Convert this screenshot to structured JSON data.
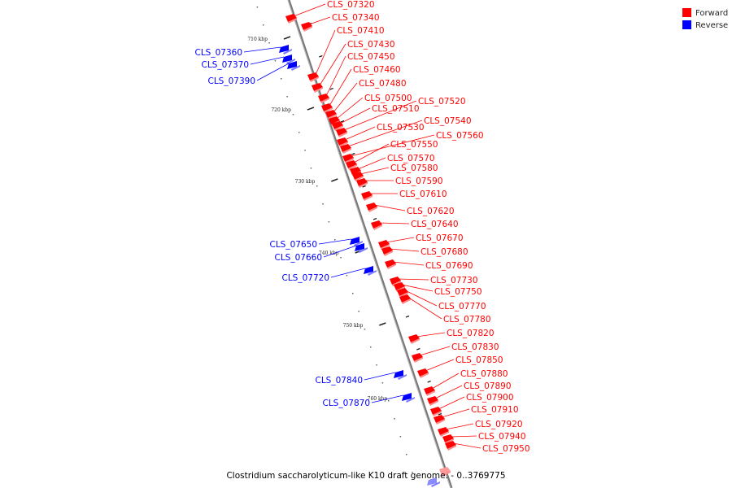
{
  "legend": {
    "forward": {
      "label": "Forward",
      "color": "#ff0000"
    },
    "reverse": {
      "label": "Reverse",
      "color": "#0000ff"
    }
  },
  "caption": "Clostridium saccharolyticum-like K10 draft genome. - 0..3769775",
  "ticks": [
    "710 kbp",
    "720 kbp",
    "730 kbp",
    "740 kbp",
    "750 kbp",
    "760 kbp"
  ],
  "forward_genes": [
    "CLS_07320",
    "CLS_07340",
    "CLS_07410",
    "CLS_07430",
    "CLS_07450",
    "CLS_07460",
    "CLS_07480",
    "CLS_07500",
    "CLS_07510",
    "CLS_07520",
    "CLS_07530",
    "CLS_07540",
    "CLS_07560",
    "CLS_07550",
    "CLS_07570",
    "CLS_07580",
    "CLS_07590",
    "CLS_07610",
    "CLS_07620",
    "CLS_07640",
    "CLS_07670",
    "CLS_07680",
    "CLS_07690",
    "CLS_07730",
    "CLS_07750",
    "CLS_07770",
    "CLS_07780",
    "CLS_07820",
    "CLS_07830",
    "CLS_07850",
    "CLS_07880",
    "CLS_07890",
    "CLS_07900",
    "CLS_07910",
    "CLS_07920",
    "CLS_07940",
    "CLS_07950"
  ],
  "reverse_genes": [
    "CLS_07360",
    "CLS_07370",
    "CLS_07390",
    "CLS_07650",
    "CLS_07660",
    "CLS_07720",
    "CLS_07840",
    "CLS_07870"
  ]
}
